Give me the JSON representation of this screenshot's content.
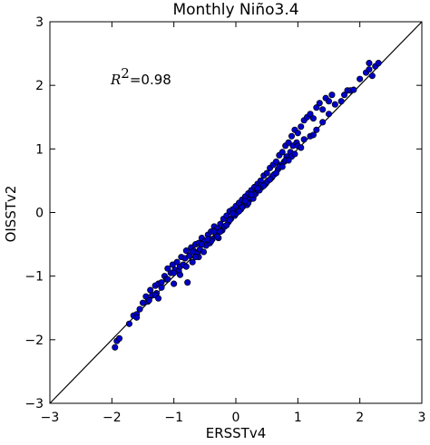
{
  "chart_data": {
    "type": "scatter",
    "title": "Monthly Niño3.4",
    "xlabel": "ERSSTv4",
    "ylabel": "OISSTv2",
    "xlim": [
      -3,
      3
    ],
    "ylim": [
      -3,
      3
    ],
    "xticks": [
      -3,
      -2,
      -1,
      0,
      1,
      2,
      3
    ],
    "yticks": [
      -3,
      -2,
      -1,
      0,
      1,
      2,
      3
    ],
    "xtick_labels": [
      "−3",
      "−2",
      "−1",
      "0",
      "1",
      "2",
      "3"
    ],
    "ytick_labels": [
      "−3",
      "−2",
      "−1",
      "0",
      "1",
      "2",
      "3"
    ],
    "grid": false,
    "annotation": {
      "symbol": "R",
      "superscript": "2",
      "value_text": "=0.98"
    },
    "reference_line": {
      "type": "identity",
      "from": [
        -3,
        -3
      ],
      "to": [
        3,
        3
      ],
      "color": "#000000"
    },
    "marker_fill": "#0000cc",
    "marker_edge": "#000000",
    "points": [
      [
        -1.95,
        -2.12
      ],
      [
        -1.92,
        -2.02
      ],
      [
        -1.88,
        -1.98
      ],
      [
        -1.72,
        -1.75
      ],
      [
        -1.65,
        -1.62
      ],
      [
        -1.6,
        -1.6
      ],
      [
        -1.55,
        -1.52
      ],
      [
        -1.5,
        -1.42
      ],
      [
        -1.45,
        -1.32
      ],
      [
        -1.42,
        -1.4
      ],
      [
        -1.38,
        -1.22
      ],
      [
        -1.35,
        -1.3
      ],
      [
        -1.3,
        -1.15
      ],
      [
        -1.28,
        -1.27
      ],
      [
        -1.25,
        -1.12
      ],
      [
        -1.2,
        -1.1
      ],
      [
        -1.15,
        -1.0
      ],
      [
        -1.1,
        -0.88
      ],
      [
        -1.12,
        -1.05
      ],
      [
        -1.05,
        -0.95
      ],
      [
        -1.02,
        -0.82
      ],
      [
        -1.0,
        -1.12
      ],
      [
        -0.98,
        -0.9
      ],
      [
        -0.95,
        -0.78
      ],
      [
        -0.92,
        -0.92
      ],
      [
        -0.9,
        -0.85
      ],
      [
        -0.88,
        -0.7
      ],
      [
        -0.85,
        -0.82
      ],
      [
        -0.82,
        -0.72
      ],
      [
        -0.8,
        -0.6
      ],
      [
        -0.78,
        -1.1
      ],
      [
        -0.75,
        -0.68
      ],
      [
        -0.72,
        -0.55
      ],
      [
        -0.7,
        -0.78
      ],
      [
        -0.68,
        -0.6
      ],
      [
        -0.65,
        -0.5
      ],
      [
        -0.62,
        -0.65
      ],
      [
        -0.6,
        -0.48
      ],
      [
        -0.58,
        -0.58
      ],
      [
        -0.55,
        -0.4
      ],
      [
        -0.52,
        -0.62
      ],
      [
        -0.5,
        -0.45
      ],
      [
        -0.48,
        -0.52
      ],
      [
        -0.45,
        -0.35
      ],
      [
        -0.42,
        -0.48
      ],
      [
        -0.4,
        -0.3
      ],
      [
        -0.38,
        -0.42
      ],
      [
        -0.35,
        -0.22
      ],
      [
        -0.32,
        -0.35
      ],
      [
        -0.3,
        -0.25
      ],
      [
        -0.28,
        -0.4
      ],
      [
        -0.25,
        -0.18
      ],
      [
        -0.22,
        -0.28
      ],
      [
        -0.2,
        -0.1
      ],
      [
        -0.18,
        -0.22
      ],
      [
        -0.15,
        -0.05
      ],
      [
        -0.12,
        -0.15
      ],
      [
        -0.1,
        0.02
      ],
      [
        -0.08,
        -0.1
      ],
      [
        -0.05,
        0.05
      ],
      [
        -0.02,
        -0.05
      ],
      [
        0.0,
        0.1
      ],
      [
        0.02,
        0.0
      ],
      [
        0.05,
        0.15
      ],
      [
        0.08,
        0.05
      ],
      [
        0.1,
        0.2
      ],
      [
        0.12,
        0.1
      ],
      [
        0.15,
        0.25
      ],
      [
        0.18,
        0.12
      ],
      [
        0.2,
        0.3
      ],
      [
        0.22,
        0.2
      ],
      [
        0.25,
        0.35
      ],
      [
        0.28,
        0.22
      ],
      [
        0.3,
        0.4
      ],
      [
        0.32,
        0.3
      ],
      [
        0.35,
        0.45
      ],
      [
        0.38,
        0.35
      ],
      [
        0.4,
        0.5
      ],
      [
        0.42,
        0.4
      ],
      [
        0.45,
        0.58
      ],
      [
        0.48,
        0.45
      ],
      [
        0.5,
        0.62
      ],
      [
        0.52,
        0.5
      ],
      [
        0.55,
        0.7
      ],
      [
        0.58,
        0.55
      ],
      [
        0.6,
        0.75
      ],
      [
        0.62,
        0.6
      ],
      [
        0.65,
        0.8
      ],
      [
        0.68,
        0.68
      ],
      [
        0.7,
        0.9
      ],
      [
        0.72,
        0.75
      ],
      [
        0.75,
        0.95
      ],
      [
        0.78,
        0.8
      ],
      [
        0.8,
        1.05
      ],
      [
        0.82,
        0.88
      ],
      [
        0.85,
        1.1
      ],
      [
        0.88,
        0.95
      ],
      [
        0.9,
        1.2
      ],
      [
        0.92,
        1.05
      ],
      [
        0.95,
        1.3
      ],
      [
        0.98,
        1.1
      ],
      [
        1.0,
        1.25
      ],
      [
        1.05,
        1.35
      ],
      [
        1.1,
        1.45
      ],
      [
        1.15,
        1.5
      ],
      [
        1.2,
        1.55
      ],
      [
        1.25,
        1.48
      ],
      [
        1.3,
        1.65
      ],
      [
        1.35,
        1.72
      ],
      [
        1.4,
        1.62
      ],
      [
        1.45,
        1.8
      ],
      [
        1.5,
        1.75
      ],
      [
        1.55,
        1.85
      ],
      [
        1.6,
        1.7
      ],
      [
        1.7,
        1.75
      ],
      [
        1.75,
        1.85
      ],
      [
        1.8,
        1.92
      ],
      [
        1.85,
        1.92
      ],
      [
        1.9,
        1.93
      ],
      [
        2.0,
        2.1
      ],
      [
        2.1,
        2.2
      ],
      [
        2.15,
        2.25
      ],
      [
        2.2,
        2.15
      ],
      [
        2.25,
        2.3
      ],
      [
        2.3,
        2.35
      ],
      [
        2.15,
        2.35
      ],
      [
        -1.3,
        -1.3
      ],
      [
        -1.25,
        -1.35
      ],
      [
        -1.0,
        -0.95
      ],
      [
        -0.9,
        -0.98
      ],
      [
        -0.7,
        -0.62
      ],
      [
        -0.6,
        -0.7
      ],
      [
        -0.4,
        -0.45
      ],
      [
        -0.3,
        -0.38
      ],
      [
        -0.1,
        -0.12
      ],
      [
        0.0,
        -0.02
      ],
      [
        0.1,
        0.08
      ],
      [
        0.2,
        0.15
      ],
      [
        0.3,
        0.28
      ],
      [
        0.4,
        0.42
      ],
      [
        0.5,
        0.48
      ],
      [
        0.6,
        0.58
      ],
      [
        0.7,
        0.72
      ],
      [
        0.8,
        0.82
      ],
      [
        0.9,
        0.88
      ],
      [
        1.0,
        1.05
      ],
      [
        1.1,
        1.15
      ],
      [
        1.2,
        1.2
      ],
      [
        1.3,
        1.3
      ],
      [
        1.4,
        1.42
      ],
      [
        1.5,
        1.55
      ],
      [
        -1.6,
        -1.65
      ],
      [
        -1.4,
        -1.38
      ],
      [
        -1.2,
        -1.18
      ],
      [
        -0.55,
        -0.5
      ],
      [
        -0.35,
        -0.3
      ],
      [
        0.15,
        0.18
      ],
      [
        0.35,
        0.38
      ],
      [
        0.55,
        0.52
      ],
      [
        0.75,
        0.72
      ],
      [
        0.95,
        0.92
      ],
      [
        -0.65,
        -0.7
      ],
      [
        -0.45,
        -0.42
      ],
      [
        -0.25,
        -0.3
      ],
      [
        -0.05,
        -0.02
      ],
      [
        0.25,
        0.28
      ],
      [
        0.45,
        0.42
      ],
      [
        0.65,
        0.62
      ],
      [
        0.85,
        0.82
      ],
      [
        1.05,
        1.02
      ],
      [
        1.25,
        1.22
      ],
      [
        -0.8,
        -0.85
      ],
      [
        -1.1,
        -1.05
      ],
      [
        -0.15,
        -0.2
      ],
      [
        0.05,
        0.02
      ]
    ]
  }
}
